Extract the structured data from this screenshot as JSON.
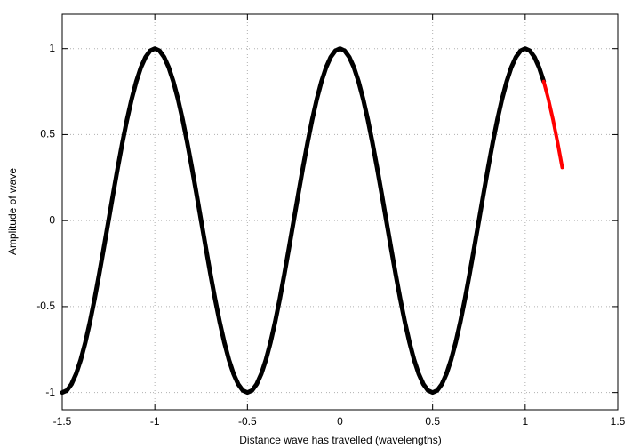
{
  "chart_data": {
    "type": "line",
    "xlabel": "Distance wave has travelled (wavelengths)",
    "ylabel": "Amplitude of wave",
    "xlim": [
      -1.5,
      1.5
    ],
    "ylim": [
      -1.1,
      1.2
    ],
    "xticks": [
      -1.5,
      -1,
      -0.5,
      0,
      0.5,
      1,
      1.5
    ],
    "yticks": [
      -1,
      -0.5,
      0,
      0.5,
      1
    ],
    "grid": true,
    "series": [
      {
        "color": "#000000",
        "x": [
          -1.5,
          -1.475,
          -1.45,
          -1.425,
          -1.4,
          -1.375,
          -1.35,
          -1.325,
          -1.3,
          -1.275,
          -1.25,
          -1.225,
          -1.2,
          -1.175,
          -1.15,
          -1.125,
          -1.1,
          -1.075,
          -1.05,
          -1.025,
          -1,
          -0.975,
          -0.95,
          -0.925,
          -0.9,
          -0.875,
          -0.85,
          -0.825,
          -0.8,
          -0.775,
          -0.75,
          -0.725,
          -0.7,
          -0.675,
          -0.65,
          -0.625,
          -0.6,
          -0.575,
          -0.55,
          -0.525,
          -0.5,
          -0.475,
          -0.45,
          -0.425,
          -0.4,
          -0.375,
          -0.35,
          -0.325,
          -0.3,
          -0.275,
          -0.25,
          -0.225,
          -0.2,
          -0.175,
          -0.15,
          -0.125,
          -0.1,
          -0.075,
          -0.05,
          -0.025,
          0,
          0.025,
          0.05,
          0.075,
          0.1,
          0.125,
          0.15,
          0.175,
          0.2,
          0.225,
          0.25,
          0.275,
          0.3,
          0.325,
          0.35,
          0.375,
          0.4,
          0.425,
          0.45,
          0.475,
          0.5,
          0.525,
          0.55,
          0.575,
          0.6,
          0.625,
          0.65,
          0.675,
          0.7,
          0.725,
          0.75,
          0.775,
          0.8,
          0.825,
          0.85,
          0.875,
          0.9,
          0.925,
          0.95,
          0.975,
          1,
          1.025,
          1.05,
          1.075,
          1.1
        ],
        "values": [
          -1,
          -0.988,
          -0.951,
          -0.891,
          -0.809,
          -0.707,
          -0.588,
          -0.454,
          -0.309,
          -0.156,
          0,
          0.156,
          0.309,
          0.454,
          0.588,
          0.707,
          0.809,
          0.891,
          0.951,
          0.988,
          1,
          0.988,
          0.951,
          0.891,
          0.809,
          0.707,
          0.588,
          0.454,
          0.309,
          0.156,
          0,
          -0.156,
          -0.309,
          -0.454,
          -0.588,
          -0.707,
          -0.809,
          -0.891,
          -0.951,
          -0.988,
          -1,
          -0.988,
          -0.951,
          -0.891,
          -0.809,
          -0.707,
          -0.588,
          -0.454,
          -0.309,
          -0.156,
          0,
          0.156,
          0.309,
          0.454,
          0.588,
          0.707,
          0.809,
          0.891,
          0.951,
          0.988,
          1,
          0.988,
          0.951,
          0.891,
          0.809,
          0.707,
          0.588,
          0.454,
          0.309,
          0.156,
          0,
          -0.156,
          -0.309,
          -0.454,
          -0.588,
          -0.707,
          -0.809,
          -0.891,
          -0.951,
          -0.988,
          -1,
          -0.988,
          -0.951,
          -0.891,
          -0.809,
          -0.707,
          -0.588,
          -0.454,
          -0.309,
          -0.156,
          0,
          0.156,
          0.309,
          0.454,
          0.588,
          0.707,
          0.809,
          0.891,
          0.951,
          0.988,
          1,
          0.988,
          0.951,
          0.891,
          0.809
        ]
      },
      {
        "color": "#ff0000",
        "x": [
          1.1,
          1.125,
          1.15,
          1.175,
          1.2
        ],
        "values": [
          0.809,
          0.707,
          0.588,
          0.454,
          0.309
        ]
      }
    ]
  }
}
